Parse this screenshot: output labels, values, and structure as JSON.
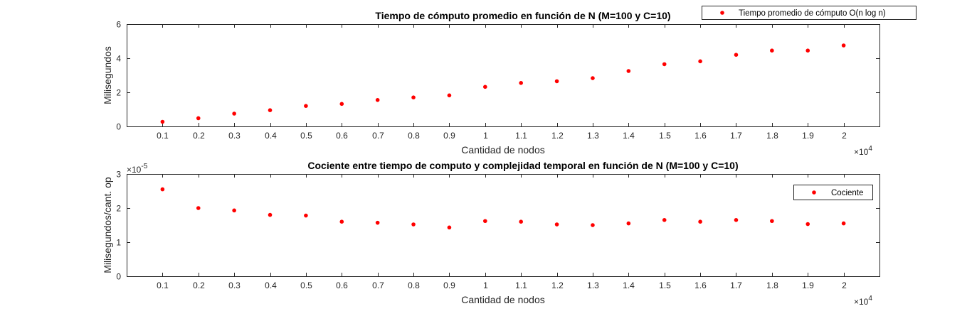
{
  "chart_data": [
    {
      "type": "scatter",
      "title": "Tiempo de cómputo promedio en función de N (M=100 y C=10)",
      "xlabel": "Cantidad de nodos",
      "ylabel": "Milisegundos",
      "x_exponent_label": "×10",
      "x_exponent": "4",
      "xlim": [
        0,
        2.1
      ],
      "ylim": [
        0,
        6
      ],
      "xticks": [
        0.1,
        0.2,
        0.3,
        0.4,
        0.5,
        0.6,
        0.7,
        0.8,
        0.9,
        1,
        1.1,
        1.2,
        1.3,
        1.4,
        1.5,
        1.6,
        1.7,
        1.8,
        1.9,
        2
      ],
      "xtick_labels": [
        "0.1",
        "0.2",
        "0.3",
        "0.4",
        "0.5",
        "0.6",
        "0.7",
        "0.8",
        "0.9",
        "1",
        "1.1",
        "1.2",
        "1.3",
        "1.4",
        "1.5",
        "1.6",
        "1.7",
        "1.8",
        "1.9",
        "2"
      ],
      "yticks": [
        0,
        2,
        4,
        6
      ],
      "ytick_labels": [
        "0",
        "2",
        "4",
        "6"
      ],
      "grid": false,
      "legend_position": "top-right-outside",
      "series": [
        {
          "name": "Tiempo promedio de cómputo O(n log n)",
          "color": "#ff0000",
          "x": [
            0.1,
            0.2,
            0.3,
            0.4,
            0.5,
            0.6,
            0.7,
            0.8,
            0.9,
            1,
            1.1,
            1.2,
            1.3,
            1.4,
            1.5,
            1.6,
            1.7,
            1.8,
            1.9,
            2
          ],
          "y": [
            0.27,
            0.48,
            0.75,
            0.95,
            1.2,
            1.32,
            1.55,
            1.7,
            1.82,
            2.32,
            2.55,
            2.65,
            2.83,
            3.25,
            3.65,
            3.82,
            4.2,
            4.45,
            4.45,
            4.75
          ]
        }
      ]
    },
    {
      "type": "scatter",
      "title": "Cociente entre tiempo de computo y complejidad temporal en función de N (M=100 y C=10)",
      "xlabel": "Cantidad de nodos",
      "ylabel": "Milisegundos/cant. op",
      "x_exponent_label": "×10",
      "x_exponent": "4",
      "y_exponent_label": "×10",
      "y_exponent": "-5",
      "xlim": [
        0,
        2.1
      ],
      "ylim": [
        0,
        3
      ],
      "xticks": [
        0.1,
        0.2,
        0.3,
        0.4,
        0.5,
        0.6,
        0.7,
        0.8,
        0.9,
        1,
        1.1,
        1.2,
        1.3,
        1.4,
        1.5,
        1.6,
        1.7,
        1.8,
        1.9,
        2
      ],
      "xtick_labels": [
        "0.1",
        "0.2",
        "0.3",
        "0.4",
        "0.5",
        "0.6",
        "0.7",
        "0.8",
        "0.9",
        "1",
        "1.1",
        "1.2",
        "1.3",
        "1.4",
        "1.5",
        "1.6",
        "1.7",
        "1.8",
        "1.9",
        "2"
      ],
      "yticks": [
        0,
        1,
        2,
        3
      ],
      "ytick_labels": [
        "0",
        "1",
        "2",
        "3"
      ],
      "grid": false,
      "legend_position": "top-right-inside",
      "series": [
        {
          "name": "Cociente",
          "color": "#ff0000",
          "x": [
            0.1,
            0.2,
            0.3,
            0.4,
            0.5,
            0.6,
            0.7,
            0.8,
            0.9,
            1,
            1.1,
            1.2,
            1.3,
            1.4,
            1.5,
            1.6,
            1.7,
            1.8,
            1.9,
            2
          ],
          "y": [
            2.55,
            2.0,
            1.93,
            1.8,
            1.78,
            1.6,
            1.57,
            1.52,
            1.43,
            1.62,
            1.6,
            1.52,
            1.5,
            1.55,
            1.65,
            1.6,
            1.65,
            1.62,
            1.53,
            1.55
          ]
        }
      ]
    }
  ]
}
